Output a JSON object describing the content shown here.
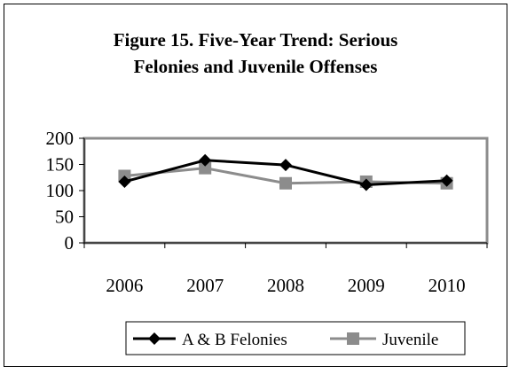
{
  "chart_data": {
    "type": "line",
    "title_line1": "Figure 15.  Five-Year Trend:  Serious",
    "title_line2": "Felonies and Juvenile Offenses",
    "categories": [
      "2006",
      "2007",
      "2008",
      "2009",
      "2010"
    ],
    "ylim": [
      0,
      200
    ],
    "yticks": [
      0,
      50,
      100,
      150,
      200
    ],
    "grid": false,
    "legend_position": "bottom",
    "series": [
      {
        "name": "A & B Felonies",
        "values": [
          117,
          158,
          149,
          111,
          119
        ],
        "color": "#000000",
        "marker": "diamond"
      },
      {
        "name": "Juvenile",
        "values": [
          128,
          143,
          114,
          117,
          114
        ],
        "color": "#8c8c8c",
        "marker": "square"
      }
    ]
  }
}
